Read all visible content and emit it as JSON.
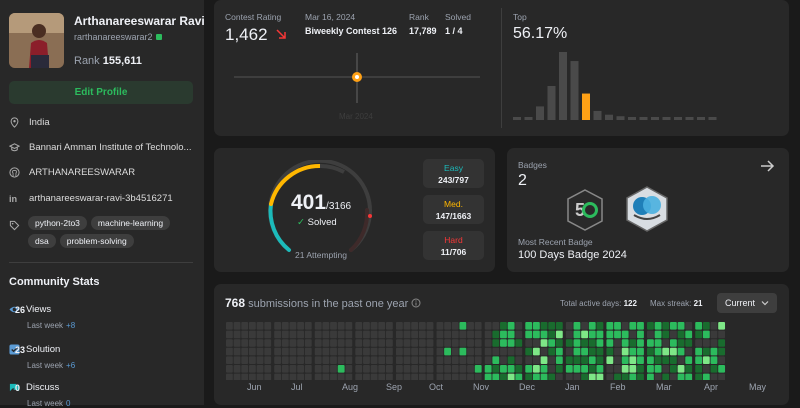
{
  "profile": {
    "name": "Arthanareeswarar Ravi",
    "handle": "rarthanareeswarar2",
    "rank_label": "Rank",
    "rank_value": "155,611",
    "edit_label": "Edit Profile",
    "location": "India",
    "school": "Bannari Amman Institute of Technolo...",
    "github": "ARTHANAREESWARAR",
    "linkedin": "arthanareeswarar-ravi-3b4516271",
    "tags": [
      "python-2to3",
      "machine-learning",
      "dsa",
      "problem-solving"
    ]
  },
  "community": {
    "title": "Community Stats",
    "views_label": "Views",
    "views_value": "26",
    "views_sub": "Last week",
    "views_delta": "+8",
    "solution_label": "Solution",
    "solution_value": "23",
    "solution_sub": "Last week",
    "solution_delta": "+6",
    "discuss_label": "Discuss",
    "discuss_value": "0",
    "discuss_sub": "Last week",
    "discuss_delta": "0"
  },
  "rating": {
    "label": "Contest Rating",
    "value": "1,462",
    "date": "Mar 16, 2024",
    "contest": "Biweekly Contest 126",
    "rank_label": "Rank",
    "rank_value": "17,789",
    "solved_label": "Solved",
    "solved_value": "1 / 4",
    "top_label": "Top",
    "top_value": "56.17%",
    "axis_label": "Mar 2024",
    "histogram": [
      2,
      4,
      18,
      45,
      90,
      78,
      35,
      12,
      7,
      5,
      3,
      2,
      1,
      1,
      1,
      1,
      1,
      1
    ]
  },
  "problems": {
    "solved": "401",
    "total": "/3166",
    "solved_label": "Solved",
    "attempting": "21 Attempting",
    "easy_label": "Easy",
    "easy_value": "243/797",
    "medium_label": "Med.",
    "medium_value": "147/1663",
    "hard_label": "Hard",
    "hard_value": "11/706",
    "easy_fraction": 0.605,
    "medium_fraction": 0.367,
    "hard_fraction": 0.027
  },
  "badges": {
    "label": "Badges",
    "count": "2",
    "recent_label": "Most Recent Badge",
    "recent_name": "100 Days Badge 2024"
  },
  "submissions": {
    "count": "768",
    "text": "submissions in the past one year",
    "active_label": "Total active days:",
    "active_value": "122",
    "streak_label": "Max streak:",
    "streak_value": "21",
    "dropdown": "Current",
    "months": [
      "Jun",
      "Jul",
      "Aug",
      "Sep",
      "Oct",
      "Nov",
      "Dec",
      "Jan",
      "Feb",
      "Mar",
      "Apr",
      "May"
    ]
  },
  "colors": {
    "accent": "#2cbb5d",
    "easy": "#1cbaba",
    "medium": "#ffb700",
    "hard": "#f63737"
  }
}
